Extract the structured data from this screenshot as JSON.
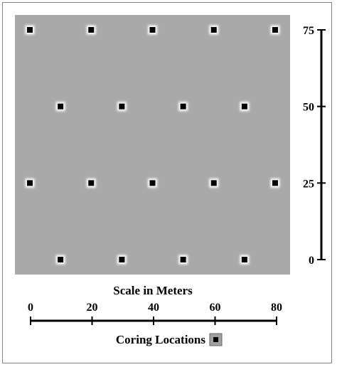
{
  "title": "",
  "colors": {
    "plot_background": "#a9a9a9",
    "marker_fill": "#000000",
    "marker_glow": "#ffffff",
    "axis": "#000000",
    "legend_swatch_bg": "#a0a0a0"
  },
  "scale_bar": {
    "title": "Scale in Meters",
    "ticks": [
      "0",
      "20",
      "40",
      "60",
      "80"
    ],
    "x_range": [
      0,
      80
    ]
  },
  "vertical_scale": {
    "ticks": [
      "0",
      "25",
      "50",
      "75"
    ],
    "y_range": [
      0,
      75
    ]
  },
  "legend": {
    "label": "Coring Locations",
    "marker_icon": "square-marker-icon"
  },
  "coring_locations": [
    {
      "x": 0,
      "y": 75
    },
    {
      "x": 20,
      "y": 75
    },
    {
      "x": 40,
      "y": 75
    },
    {
      "x": 60,
      "y": 75
    },
    {
      "x": 80,
      "y": 75
    },
    {
      "x": 10,
      "y": 50
    },
    {
      "x": 30,
      "y": 50
    },
    {
      "x": 50,
      "y": 50
    },
    {
      "x": 70,
      "y": 50
    },
    {
      "x": 0,
      "y": 25
    },
    {
      "x": 20,
      "y": 25
    },
    {
      "x": 40,
      "y": 25
    },
    {
      "x": 60,
      "y": 25
    },
    {
      "x": 80,
      "y": 25
    },
    {
      "x": 10,
      "y": 0
    },
    {
      "x": 30,
      "y": 0
    },
    {
      "x": 50,
      "y": 0
    },
    {
      "x": 70,
      "y": 0
    }
  ]
}
